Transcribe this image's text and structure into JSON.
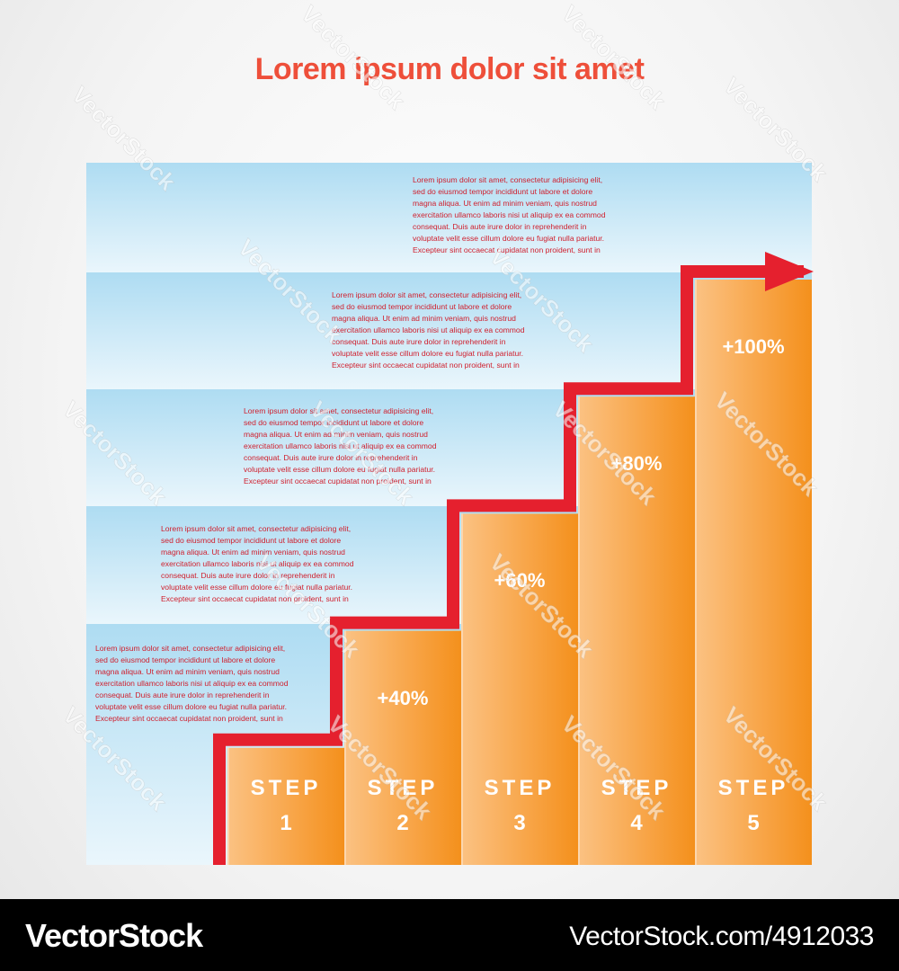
{
  "title": "Lorem ipsum dolor sit amet",
  "paragraph": "Lorem ipsum dolor sit amet, consectetur adipisicing elit, sed do eiusmod tempor incididunt ut labore et dolore magna aliqua. Ut enim ad minim veniam, quis nostrud exercitation ullamco laboris nisi ut aliquip ex ea commod consequat. Duis aute irure dolor in reprehenderit in voluptate velit esse cillum dolore eu fugiat nulla pariatur. Excepteur sint occaecat cupidatat non proident, sunt in",
  "paragraph_lines": [
    "Lorem ipsum dolor sit amet, consectetur adipisicing elit,",
    "sed do eiusmod tempor incididunt ut labore et dolore",
    "magna aliqua. Ut enim ad minim veniam, quis nostrud",
    "exercitation ullamco laboris nisi ut aliquip ex ea commod",
    "consequat. Duis aute irure dolor in reprehenderit in",
    "voluptate velit esse cillum dolore eu fugiat nulla pariatur.",
    "Excepteur sint occaecat cupidatat non proident, sunt in"
  ],
  "chart_data": {
    "type": "bar",
    "categories": [
      "STEP 1",
      "STEP 2",
      "STEP 3",
      "STEP 4",
      "STEP 5"
    ],
    "step_word": "STEP",
    "step_numbers": [
      "1",
      "2",
      "3",
      "4",
      "5"
    ],
    "values": [
      20,
      40,
      60,
      80,
      100
    ],
    "value_labels": [
      "",
      "+40%",
      "+60%",
      "+80%",
      "+100%"
    ],
    "ylim": [
      0,
      100
    ],
    "grid": false,
    "title": "Lorem ipsum dolor sit amet"
  },
  "colors": {
    "title": "#ee4f3a",
    "arrow": "#e5202e",
    "bar_light": "#fbbd7a",
    "bar_dark": "#f5921e",
    "band_top": "#aedcf2",
    "band_bottom": "#e9f6fc",
    "text": "#d0202e"
  },
  "watermark": "VectorStock",
  "footer": {
    "brand": "VectorStock",
    "url": "VectorStock.com/4912033"
  }
}
